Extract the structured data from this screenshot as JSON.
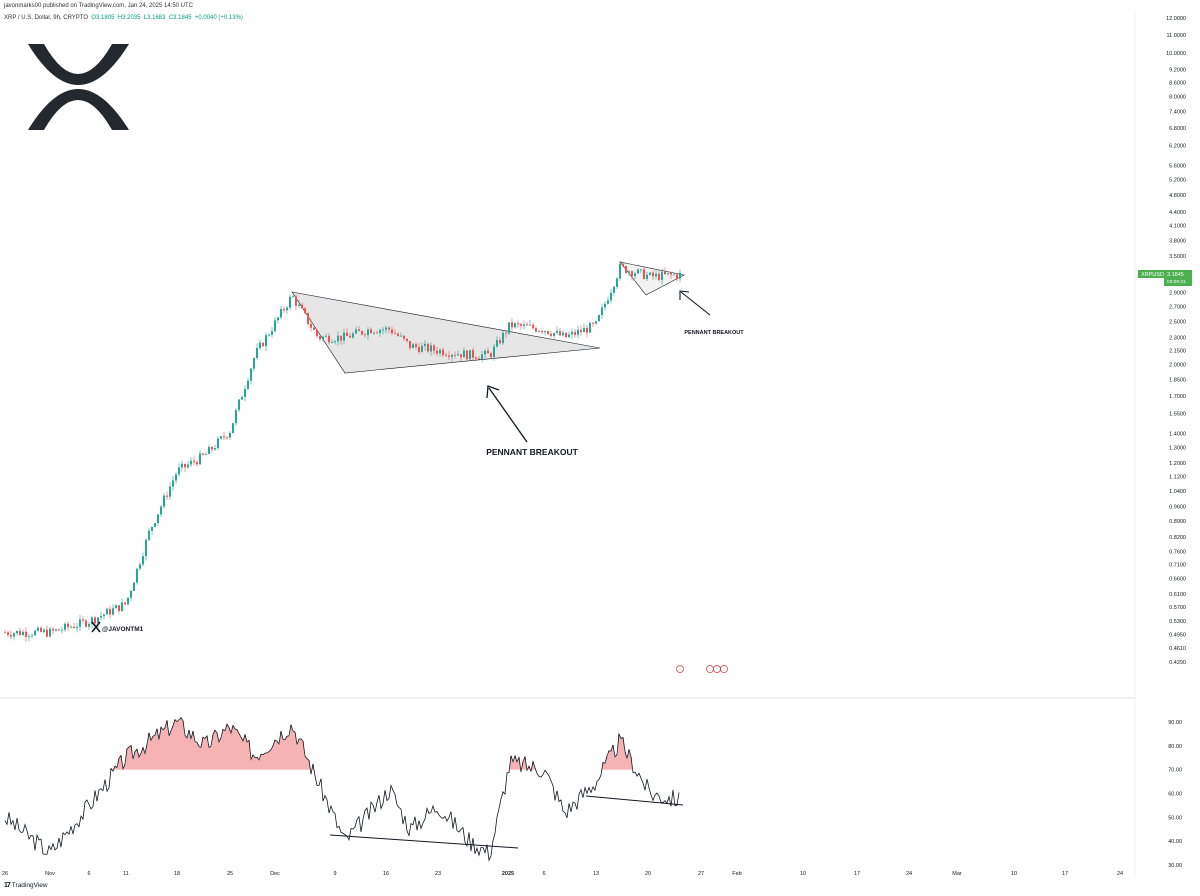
{
  "header": {
    "publisher": "javonmarks00 published on TradingView.com, Jan 24, 2025 14:50 UTC"
  },
  "symbol_line": {
    "prefix": "XRP / U.S. Dollar, 9h, CRYPTO",
    "o": "O3.1805",
    "h": "H3.2035",
    "l": "L3.1683",
    "c": "C3.1845",
    "change": "+0.0040 (+0.13%)"
  },
  "watermark": {
    "handle": "@JAVONTM1",
    "logo_icon": "xrp-logo-icon"
  },
  "price_label": {
    "symbol": "XRPUSD",
    "price": "3.1845",
    "countdown": "03:09:21",
    "color": "#4caf50"
  },
  "annotations": {
    "big": "PENNANT BREAKOUT",
    "small": "PENNANT BREAKOUT"
  },
  "footer": {
    "brand": "TradingView"
  },
  "colors": {
    "up": "#26a69a",
    "down": "#ef5350",
    "pennant_fill": "#e6e6e6",
    "oscillator_line": "#131722",
    "oscillator_hot": "#f5a6a6"
  },
  "chart_data": [
    {
      "type": "line",
      "title": "",
      "scale": "log",
      "y_axis_ticks": [
        "12.0000",
        "11.0000",
        "10.0000",
        "9.2000",
        "8.6000",
        "8.0000",
        "7.4000",
        "6.8000",
        "6.2000",
        "5.6000",
        "5.2000",
        "4.8000",
        "4.4000",
        "4.1000",
        "3.8000",
        "3.5000",
        "2.9000",
        "2.7000",
        "2.5000",
        "2.3000",
        "2.1500",
        "2.0000",
        "1.8500",
        "1.7000",
        "1.5500",
        "1.4000",
        "1.3000",
        "1.2000",
        "1.1200",
        "1.0400",
        "0.9600",
        "0.8900",
        "0.8200",
        "0.7600",
        "0.7100",
        "0.6600",
        "0.6100",
        "0.5700",
        "0.5300",
        "0.4950",
        "0.4610",
        "0.4290"
      ],
      "x_axis_ticks": [
        "26",
        "Nov",
        "6",
        "11",
        "18",
        "25",
        "Dec",
        "9",
        "16",
        "23",
        "2025",
        "6",
        "13",
        "20",
        "27",
        "Feb",
        "10",
        "17",
        "24",
        "Mar",
        "10",
        "17",
        "24"
      ],
      "x": [
        "Oct 26",
        "Nov 1",
        "Nov 6",
        "Nov 11",
        "Nov 15",
        "Nov 18",
        "Nov 22",
        "Nov 25",
        "Nov 29",
        "Dec 2",
        "Dec 6",
        "Dec 9",
        "Dec 13",
        "Dec 16",
        "Dec 20",
        "Dec 23",
        "Dec 27",
        "Dec 30",
        "Jan 2",
        "Jan 6",
        "Jan 9",
        "Jan 13",
        "Jan 16",
        "Jan 20",
        "Jan 24"
      ],
      "series": [
        {
          "values": [
            0.5,
            0.5,
            0.53,
            0.58,
            0.85,
            1.15,
            1.25,
            1.42,
            2.1,
            2.85,
            2.3,
            2.3,
            2.4,
            2.4,
            2.2,
            2.15,
            2.1,
            2.1,
            2.45,
            2.4,
            2.3,
            2.45,
            3.3,
            3.15,
            3.18
          ]
        }
      ]
    },
    {
      "type": "line",
      "title": "",
      "y_axis_ticks": [
        "90.00",
        "80.00",
        "70.00",
        "60.00",
        "50.00",
        "40.00",
        "30.00"
      ],
      "ylim": [
        25,
        95
      ],
      "x": [
        "Oct 26",
        "Nov 1",
        "Nov 6",
        "Nov 11",
        "Nov 15",
        "Nov 18",
        "Nov 22",
        "Nov 25",
        "Nov 29",
        "Dec 2",
        "Dec 6",
        "Dec 9",
        "Dec 13",
        "Dec 16",
        "Dec 20",
        "Dec 23",
        "Dec 27",
        "Dec 30",
        "Jan 2",
        "Jan 6",
        "Jan 9",
        "Jan 13",
        "Jan 16",
        "Jan 20",
        "Jan 24"
      ],
      "series": [
        {
          "values": [
            50,
            35,
            55,
            75,
            82,
            90,
            80,
            88,
            76,
            89,
            65,
            40,
            52,
            62,
            45,
            55,
            40,
            35,
            73,
            70,
            52,
            65,
            82,
            60,
            57
          ]
        }
      ]
    }
  ]
}
